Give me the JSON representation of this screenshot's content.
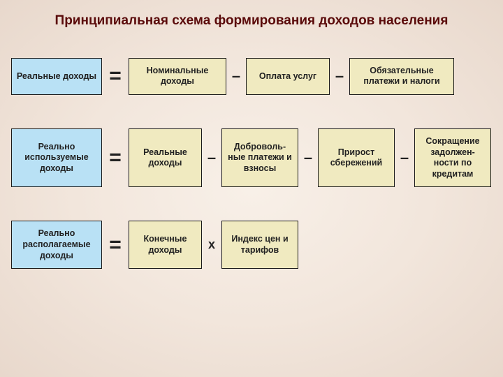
{
  "title": "Принципиальная схема формирования\nдоходов населения",
  "colors": {
    "lhs_bg": "#b9e1f5",
    "rhs_bg": "#f0eac0",
    "title_color": "#5a0a0a",
    "border": "#1a1a1a"
  },
  "rows": [
    {
      "lhs": "Реальные доходы",
      "eq": "=",
      "terms": [
        {
          "text": "Номинальные доходы",
          "width": 140
        },
        {
          "op": "–"
        },
        {
          "text": "Оплата услуг",
          "width": 120
        },
        {
          "op": "–"
        },
        {
          "text": "Обязательные платежи и налоги",
          "width": 150
        }
      ],
      "lhs_width": 130
    },
    {
      "lhs": "Реально используемые доходы",
      "eq": "=",
      "terms": [
        {
          "text": "Реальные доходы",
          "width": 105
        },
        {
          "op": "–"
        },
        {
          "text": "Доброволь-\nные платежи и взносы",
          "width": 110
        },
        {
          "op": "–"
        },
        {
          "text": "Прирост сбережений",
          "width": 110
        },
        {
          "op": "–"
        },
        {
          "text": "Сокращение задолжен-\nности по кредитам",
          "width": 110
        }
      ],
      "lhs_width": 130
    },
    {
      "lhs": "Реально располагаемые доходы",
      "eq": "=",
      "terms": [
        {
          "text": "Конечные доходы",
          "width": 105
        },
        {
          "op": "x",
          "kind": "mul"
        },
        {
          "text": "Индекс цен и тарифов",
          "width": 110
        }
      ],
      "lhs_width": 130
    }
  ]
}
